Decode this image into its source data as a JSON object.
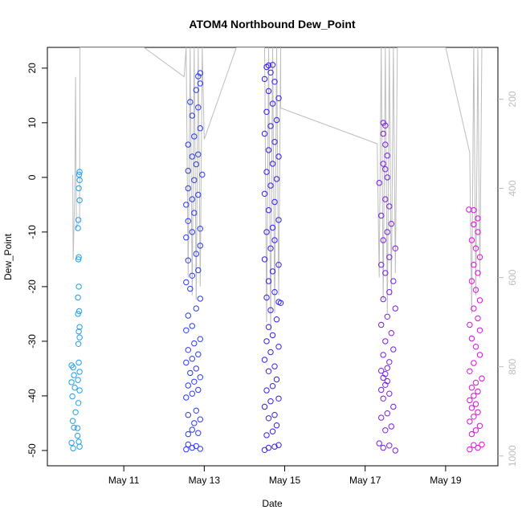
{
  "chart_data": {
    "type": "scatter",
    "title": "ATOM4 Northbound Dew_Point",
    "xlabel": "Date",
    "ylabel": "Dew_Point",
    "x_unit": "days",
    "x_ticks": [
      {
        "value": 11,
        "label": "May 11"
      },
      {
        "value": 13,
        "label": "May 13"
      },
      {
        "value": 15,
        "label": "May 15"
      },
      {
        "value": 17,
        "label": "May 17"
      },
      {
        "value": 19,
        "label": "May 19"
      }
    ],
    "xlim": [
      9.1,
      20.3
    ],
    "ylim": [
      -52.8,
      23.8
    ],
    "y_ticks": [
      -50,
      -40,
      -30,
      -20,
      -10,
      0,
      10,
      20
    ],
    "y2_label": "",
    "y2_ticks": [
      200,
      400,
      600,
      800,
      1000
    ],
    "y2_lim": [
      1022,
      84
    ],
    "y2_inverted": true,
    "grid": false,
    "legend": "none",
    "colors": {
      "points_start": "#1f9fef",
      "points_mid": "#2b3bf0",
      "points_late": "#7a1ee8",
      "points_end": "#e00ee0",
      "pressure_line": "#bdbdbd",
      "axis": "#000000",
      "right_axis": "#bdbdbd"
    },
    "series": [
      {
        "color": "#1f9fef",
        "points": [
          [
            9.7,
            -34.4
          ],
          [
            9.74,
            -34.8
          ],
          [
            9.76,
            -36.2
          ],
          [
            9.7,
            -37.5
          ],
          [
            9.78,
            -38.5
          ],
          [
            9.72,
            -40.1
          ],
          [
            9.8,
            -43.0
          ],
          [
            9.73,
            -44.6
          ],
          [
            9.76,
            -45.8
          ],
          [
            9.7,
            -48.6
          ],
          [
            9.74,
            -49.6
          ],
          [
            9.85,
            -47.3
          ],
          [
            9.88,
            -48.4
          ],
          [
            9.9,
            -49.3
          ],
          [
            9.85,
            -45.9
          ],
          [
            9.87,
            -41.3
          ],
          [
            9.9,
            -39.0
          ],
          [
            9.86,
            -37.1
          ],
          [
            9.9,
            -35.6
          ],
          [
            9.88,
            -33.9
          ],
          [
            9.87,
            -30.5
          ],
          [
            9.9,
            -29.3
          ],
          [
            9.88,
            -28.2
          ],
          [
            9.9,
            -27.4
          ],
          [
            9.86,
            -25.0
          ],
          [
            9.89,
            -24.5
          ],
          [
            9.86,
            -22.0
          ],
          [
            9.88,
            -20.0
          ],
          [
            9.87,
            -15.0
          ],
          [
            9.88,
            -14.6
          ],
          [
            9.86,
            -9.3
          ],
          [
            9.87,
            -7.8
          ],
          [
            9.9,
            -4.2
          ],
          [
            9.88,
            -2.0
          ],
          [
            9.9,
            -0.5
          ],
          [
            9.89,
            0.5
          ],
          [
            9.9,
            1.0
          ]
        ]
      },
      {
        "color": "#2b3bf0",
        "points": [
          [
            12.55,
            -49.8
          ],
          [
            12.6,
            -48.9
          ],
          [
            12.7,
            -49.5
          ],
          [
            12.8,
            -49.2
          ],
          [
            12.9,
            -49.7
          ],
          [
            12.6,
            -47.0
          ],
          [
            12.7,
            -46.2
          ],
          [
            12.85,
            -46.8
          ],
          [
            12.75,
            -45.0
          ],
          [
            12.9,
            -44.3
          ],
          [
            12.6,
            -43.5
          ],
          [
            12.8,
            -42.7
          ],
          [
            12.55,
            -40.3
          ],
          [
            12.7,
            -39.6
          ],
          [
            12.85,
            -38.9
          ],
          [
            12.6,
            -38.1
          ],
          [
            12.75,
            -37.4
          ],
          [
            12.9,
            -36.6
          ],
          [
            12.65,
            -35.8
          ],
          [
            12.8,
            -35.0
          ],
          [
            12.55,
            -33.9
          ],
          [
            12.7,
            -33.2
          ],
          [
            12.85,
            -32.4
          ],
          [
            12.6,
            -31.6
          ],
          [
            12.75,
            -30.4
          ],
          [
            12.9,
            -29.6
          ],
          [
            12.55,
            -28.0
          ],
          [
            12.7,
            -27.2
          ],
          [
            12.6,
            -25.3
          ],
          [
            12.8,
            -24.0
          ],
          [
            12.9,
            -22.2
          ],
          [
            12.65,
            -20.4
          ],
          [
            12.55,
            -19.2
          ],
          [
            12.7,
            -18.0
          ],
          [
            12.85,
            -17.0
          ],
          [
            12.6,
            -15.2
          ],
          [
            12.8,
            -14.0
          ],
          [
            12.9,
            -12.5
          ],
          [
            12.55,
            -11.0
          ],
          [
            12.7,
            -10.0
          ],
          [
            12.9,
            -9.4
          ],
          [
            12.6,
            -8.0
          ],
          [
            12.75,
            -6.5
          ],
          [
            12.55,
            -5.0
          ],
          [
            12.7,
            -4.0
          ],
          [
            12.85,
            -3.2
          ],
          [
            12.6,
            -2.0
          ],
          [
            12.75,
            -0.5
          ],
          [
            12.95,
            0.5
          ],
          [
            12.6,
            1.2
          ],
          [
            12.8,
            2.4
          ],
          [
            12.7,
            3.8
          ],
          [
            12.85,
            4.2
          ],
          [
            12.6,
            6.0
          ],
          [
            12.75,
            7.5
          ],
          [
            12.9,
            9.0
          ],
          [
            12.7,
            11.3
          ],
          [
            12.85,
            12.8
          ],
          [
            12.65,
            13.8
          ],
          [
            12.8,
            16.0
          ],
          [
            12.9,
            17.2
          ],
          [
            12.85,
            18.5
          ],
          [
            12.9,
            19.1
          ]
        ]
      },
      {
        "color": "#3420ee",
        "points": [
          [
            14.5,
            -49.9
          ],
          [
            14.6,
            -49.5
          ],
          [
            14.75,
            -49.3
          ],
          [
            14.85,
            -49.0
          ],
          [
            14.55,
            -47.2
          ],
          [
            14.7,
            -46.5
          ],
          [
            14.8,
            -45.4
          ],
          [
            14.6,
            -44.1
          ],
          [
            14.75,
            -43.5
          ],
          [
            14.5,
            -42.0
          ],
          [
            14.65,
            -41.0
          ],
          [
            14.85,
            -40.5
          ],
          [
            14.55,
            -39.0
          ],
          [
            14.7,
            -38.2
          ],
          [
            14.8,
            -37.0
          ],
          [
            14.6,
            -35.5
          ],
          [
            14.75,
            -34.6
          ],
          [
            14.5,
            -33.4
          ],
          [
            14.65,
            -32.0
          ],
          [
            14.85,
            -31.0
          ],
          [
            14.55,
            -30.0
          ],
          [
            14.7,
            -28.9
          ],
          [
            14.6,
            -27.4
          ],
          [
            14.8,
            -26.0
          ],
          [
            14.65,
            -24.3
          ],
          [
            14.55,
            -22.0
          ],
          [
            14.75,
            -21.0
          ],
          [
            14.85,
            -22.8
          ],
          [
            14.9,
            -23.0
          ],
          [
            14.6,
            -19.0
          ],
          [
            14.7,
            -17.2
          ],
          [
            14.85,
            -16.0
          ],
          [
            14.5,
            -15.0
          ],
          [
            14.65,
            -13.0
          ],
          [
            14.75,
            -11.5
          ],
          [
            14.55,
            -10.0
          ],
          [
            14.7,
            -9.2
          ],
          [
            14.85,
            -7.8
          ],
          [
            14.6,
            -6.0
          ],
          [
            14.75,
            -4.5
          ],
          [
            14.5,
            -3.0
          ],
          [
            14.65,
            -1.5
          ],
          [
            14.8,
            -0.3
          ],
          [
            14.55,
            1.0
          ],
          [
            14.7,
            2.5
          ],
          [
            14.85,
            3.8
          ],
          [
            14.6,
            5.0
          ],
          [
            14.75,
            6.5
          ],
          [
            14.5,
            8.0
          ],
          [
            14.65,
            9.4
          ],
          [
            14.8,
            10.5
          ],
          [
            14.55,
            12.0
          ],
          [
            14.7,
            13.5
          ],
          [
            14.85,
            14.5
          ],
          [
            14.6,
            15.8
          ],
          [
            14.75,
            17.5
          ],
          [
            14.5,
            18.0
          ],
          [
            14.65,
            19.2
          ],
          [
            14.55,
            20.2
          ],
          [
            14.7,
            20.6
          ],
          [
            14.6,
            20.5
          ]
        ]
      },
      {
        "color": "#7a1ee8",
        "points": [
          [
            17.35,
            -48.7
          ],
          [
            17.45,
            -49.5
          ],
          [
            17.6,
            -49.1
          ],
          [
            17.75,
            -50.0
          ],
          [
            17.5,
            -46.3
          ],
          [
            17.65,
            -45.6
          ],
          [
            17.4,
            -44.0
          ],
          [
            17.55,
            -43.2
          ],
          [
            17.7,
            -42.0
          ],
          [
            17.45,
            -40.5
          ],
          [
            17.6,
            -39.6
          ],
          [
            17.4,
            -38.9
          ],
          [
            17.5,
            -38.0
          ],
          [
            17.55,
            -37.3
          ],
          [
            17.45,
            -36.7
          ],
          [
            17.5,
            -36.0
          ],
          [
            17.4,
            -35.4
          ],
          [
            17.55,
            -34.9
          ],
          [
            17.6,
            -33.8
          ],
          [
            17.45,
            -32.5
          ],
          [
            17.7,
            -31.5
          ],
          [
            17.5,
            -30.0
          ],
          [
            17.65,
            -28.5
          ],
          [
            17.4,
            -27.0
          ],
          [
            17.55,
            -25.5
          ],
          [
            17.75,
            -24.0
          ],
          [
            17.45,
            -22.3
          ],
          [
            17.6,
            -21.0
          ],
          [
            17.7,
            -19.0
          ],
          [
            17.5,
            -17.5
          ],
          [
            17.4,
            -16.0
          ],
          [
            17.6,
            -14.6
          ],
          [
            17.75,
            -13.0
          ],
          [
            17.45,
            -11.5
          ],
          [
            17.55,
            -10.0
          ],
          [
            17.65,
            -8.5
          ],
          [
            17.4,
            -7.0
          ],
          [
            17.6,
            -5.3
          ],
          [
            17.5,
            -4.0
          ],
          [
            17.35,
            -1.0
          ],
          [
            17.55,
            0.0
          ],
          [
            17.5,
            1.5
          ],
          [
            17.45,
            2.5
          ],
          [
            17.55,
            4.0
          ],
          [
            17.5,
            6.0
          ],
          [
            17.45,
            8.0
          ],
          [
            17.5,
            9.5
          ],
          [
            17.45,
            10.0
          ]
        ]
      },
      {
        "color": "#e00ee0",
        "points": [
          [
            19.6,
            -49.8
          ],
          [
            19.7,
            -49.0
          ],
          [
            19.8,
            -49.5
          ],
          [
            19.9,
            -48.9
          ],
          [
            19.65,
            -47.0
          ],
          [
            19.75,
            -46.3
          ],
          [
            19.85,
            -45.5
          ],
          [
            19.6,
            -44.7
          ],
          [
            19.7,
            -43.8
          ],
          [
            19.8,
            -43.0
          ],
          [
            19.65,
            -42.2
          ],
          [
            19.75,
            -41.5
          ],
          [
            19.6,
            -40.8
          ],
          [
            19.7,
            -40.0
          ],
          [
            19.8,
            -39.2
          ],
          [
            19.65,
            -38.5
          ],
          [
            19.75,
            -37.6
          ],
          [
            19.9,
            -36.8
          ],
          [
            19.6,
            -35.5
          ],
          [
            19.7,
            -34.0
          ],
          [
            19.85,
            -32.5
          ],
          [
            19.75,
            -31.0
          ],
          [
            19.65,
            -29.5
          ],
          [
            19.85,
            -28.0
          ],
          [
            19.6,
            -27.0
          ],
          [
            19.8,
            -25.8
          ],
          [
            19.7,
            -24.0
          ],
          [
            19.85,
            -22.5
          ],
          [
            19.75,
            -20.6
          ],
          [
            19.65,
            -19.0
          ],
          [
            19.8,
            -17.5
          ],
          [
            19.7,
            -16.0
          ],
          [
            19.85,
            -14.6
          ],
          [
            19.75,
            -13.0
          ],
          [
            19.65,
            -11.5
          ],
          [
            19.8,
            -10.0
          ],
          [
            19.7,
            -8.6
          ],
          [
            19.8,
            -7.5
          ],
          [
            19.58,
            -5.9
          ],
          [
            19.7,
            -6.0
          ]
        ]
      }
    ],
    "pressure_line": {
      "color": "#bdbdbd",
      "points": [
        [
          9.73,
          370
        ],
        [
          9.74,
          560
        ],
        [
          9.78,
          410
        ],
        [
          9.8,
          150
        ],
        [
          9.82,
          490
        ],
        [
          9.86,
          480
        ],
        [
          9.9,
          470
        ],
        [
          9.91,
          0
        ],
        [
          9.92,
          0
        ],
        [
          9.93,
          84
        ],
        [
          11.5,
          84
        ],
        [
          12.5,
          150
        ],
        [
          12.55,
          84
        ],
        [
          12.6,
          600
        ],
        [
          12.65,
          84
        ],
        [
          12.7,
          640
        ],
        [
          12.75,
          84
        ],
        [
          12.8,
          650
        ],
        [
          12.85,
          84
        ],
        [
          12.9,
          620
        ],
        [
          12.95,
          84
        ],
        [
          13.0,
          290
        ],
        [
          13.8,
          84
        ],
        [
          14.5,
          84
        ],
        [
          14.55,
          700
        ],
        [
          14.6,
          84
        ],
        [
          14.65,
          720
        ],
        [
          14.7,
          84
        ],
        [
          14.75,
          680
        ],
        [
          14.8,
          84
        ],
        [
          14.85,
          640
        ],
        [
          14.9,
          84
        ],
        [
          14.9,
          220
        ],
        [
          17.3,
          300
        ],
        [
          17.35,
          600
        ],
        [
          17.4,
          84
        ],
        [
          17.45,
          650
        ],
        [
          17.5,
          84
        ],
        [
          17.55,
          680
        ],
        [
          17.6,
          84
        ],
        [
          17.65,
          640
        ],
        [
          17.7,
          84
        ],
        [
          17.75,
          590
        ],
        [
          17.8,
          84
        ],
        [
          18.2,
          84
        ],
        [
          19.0,
          84
        ],
        [
          19.6,
          320
        ],
        [
          19.65,
          680
        ],
        [
          19.7,
          84
        ],
        [
          19.75,
          640
        ],
        [
          19.8,
          84
        ],
        [
          19.85,
          600
        ],
        [
          19.9,
          84
        ]
      ]
    }
  }
}
